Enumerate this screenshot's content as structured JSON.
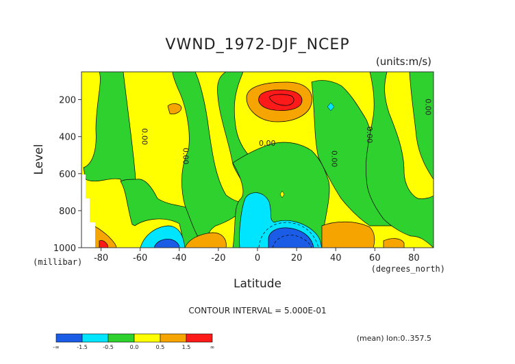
{
  "chart_data": {
    "type": "heatmap",
    "title": "VWND_1972-DJF_NCEP",
    "units_note": "(units:m/s)",
    "xlabel": "Latitude",
    "ylabel": "Level",
    "x_units": "(degrees_north)",
    "y_units": "(millibar)",
    "xlim": [
      -90,
      90
    ],
    "ylim": [
      1000,
      50
    ],
    "y_reversed": true,
    "x_ticks": [
      {
        "v": -80,
        "label": "-80"
      },
      {
        "v": -60,
        "label": "-60"
      },
      {
        "v": -40,
        "label": "-40"
      },
      {
        "v": -20,
        "label": "-20"
      },
      {
        "v": 0,
        "label": "0"
      },
      {
        "v": 20,
        "label": "20"
      },
      {
        "v": 40,
        "label": "40"
      },
      {
        "v": 60,
        "label": "60"
      },
      {
        "v": 80,
        "label": "80"
      }
    ],
    "y_ticks": [
      {
        "v": 200,
        "label": "200"
      },
      {
        "v": 400,
        "label": "400"
      },
      {
        "v": 600,
        "label": "600"
      },
      {
        "v": 800,
        "label": "800"
      },
      {
        "v": 1000,
        "label": "1000"
      }
    ],
    "contour_interval_text": "CONTOUR INTERVAL = 5.000E-01",
    "contour_labels": [
      {
        "text": "0.00",
        "lat": -59,
        "lev": 400,
        "rot": 90
      },
      {
        "text": "0.00",
        "lat": -38,
        "lev": 505,
        "rot": 90
      },
      {
        "text": "0.00",
        "lat": 5,
        "lev": 450,
        "rot": 0
      },
      {
        "text": "0.00",
        "lat": 38,
        "lev": 520,
        "rot": 90
      },
      {
        "text": "0.00",
        "lat": 56,
        "lev": 390,
        "rot": 90
      },
      {
        "text": "0.00",
        "lat": 86,
        "lev": 240,
        "rot": 90
      }
    ],
    "colorbar": {
      "colors": [
        "#1b5ce6",
        "#00e5ff",
        "#2ed12e",
        "#ffff00",
        "#f5a400",
        "#ff1a1a"
      ],
      "labels": [
        "-∞",
        "-1.5",
        "-0.5",
        "0.0",
        "0.5",
        "1.5",
        "∞"
      ]
    },
    "footnote": "(mean) lon:0..357.5",
    "regions": [
      {
        "value": "0 to 0.5",
        "color": "#ffff00",
        "kind": "background"
      },
      {
        "value": "-0.5 to 0",
        "color": "#2ed12e",
        "kind": "band",
        "note": "green band near -75 to -60"
      },
      {
        "value": "-0.5 to 0",
        "color": "#2ed12e",
        "kind": "band",
        "note": "green column near -40 to -20"
      },
      {
        "value": "-0.5 to 0",
        "color": "#2ed12e",
        "kind": "region",
        "note": "green region near -10 to 30, mid levels"
      },
      {
        "value": "-0.5 to 0",
        "color": "#2ed12e",
        "kind": "band",
        "note": "green columns near 45 to 90"
      },
      {
        "value": "> 1.5",
        "color": "#ff1a1a",
        "kind": "max",
        "note": "jet maximum near 10N, 170 mb"
      },
      {
        "value": "< -1.5",
        "color": "#1b5ce6",
        "kind": "min",
        "note": "minimum near 10N, 950 mb"
      },
      {
        "value": "< -1.5",
        "color": "#1b5ce6",
        "kind": "min",
        "note": "minimum near -50, 1000 mb"
      }
    ]
  }
}
